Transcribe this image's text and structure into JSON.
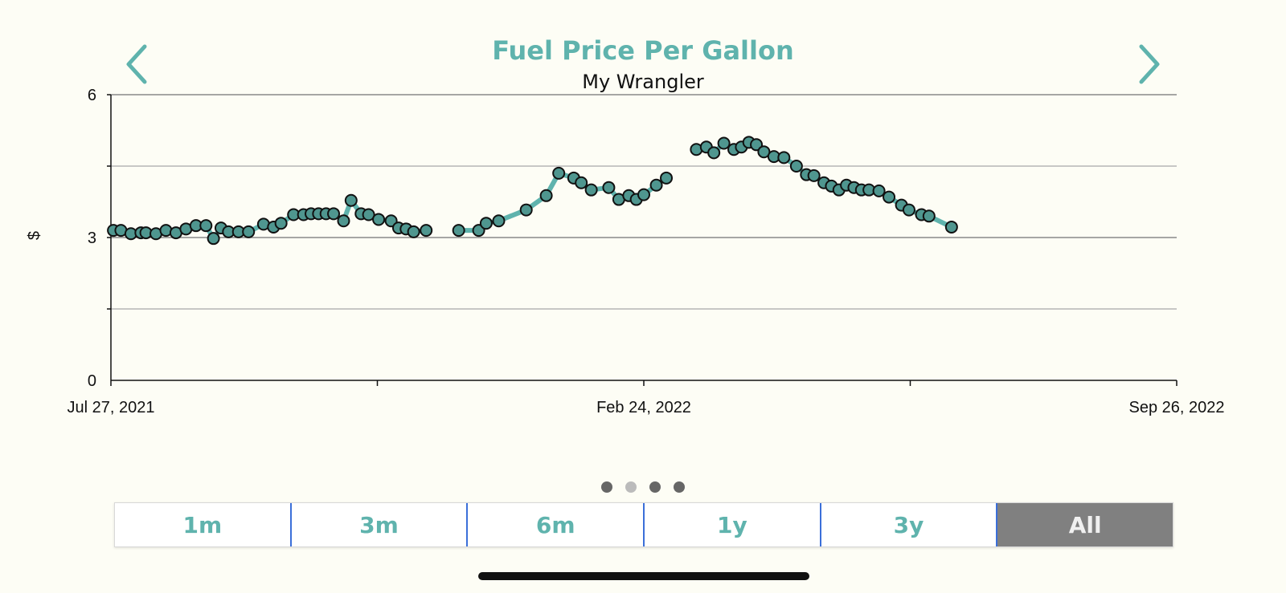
{
  "header": {
    "title": "Fuel Price Per Gallon",
    "subtitle": "My Wrangler"
  },
  "nav": {
    "prev_icon": "chevron-left-icon",
    "next_icon": "chevron-right-icon"
  },
  "colors": {
    "accent": "#5fb3ad",
    "point_fill": "#4f968f",
    "line": "#5fb3ad",
    "active_segment": "#808080"
  },
  "page_indicator": {
    "count": 4,
    "active_index": 1
  },
  "range_selector": {
    "options": [
      "1m",
      "3m",
      "6m",
      "1y",
      "3y",
      "All"
    ],
    "selected": "All"
  },
  "chart_data": {
    "type": "line",
    "ylabel": "$",
    "ylim": [
      0,
      6
    ],
    "yticks": [
      0,
      3,
      6
    ],
    "grid": true,
    "x_range": [
      "2021-07-27",
      "2022-09-26"
    ],
    "xtick_labels": [
      "Jul 27, 2021",
      "Feb 24, 2022",
      "Sep 26, 2022"
    ],
    "series": [
      {
        "points": [
          [
            "2021-07-28",
            3.15
          ],
          [
            "2021-07-31",
            3.15
          ],
          [
            "2021-08-04",
            3.08
          ],
          [
            "2021-08-08",
            3.1
          ],
          [
            "2021-08-10",
            3.1
          ],
          [
            "2021-08-14",
            3.08
          ],
          [
            "2021-08-18",
            3.15
          ],
          [
            "2021-08-22",
            3.1
          ],
          [
            "2021-08-26",
            3.18
          ],
          [
            "2021-08-30",
            3.25
          ],
          [
            "2021-09-03",
            3.25
          ],
          [
            "2021-09-06",
            2.98
          ],
          [
            "2021-09-09",
            3.2
          ],
          [
            "2021-09-12",
            3.12
          ],
          [
            "2021-09-16",
            3.12
          ],
          [
            "2021-09-20",
            3.12
          ],
          [
            "2021-09-26",
            3.28
          ],
          [
            "2021-09-30",
            3.22
          ],
          [
            "2021-10-03",
            3.3
          ],
          [
            "2021-10-08",
            3.48
          ],
          [
            "2021-10-12",
            3.48
          ],
          [
            "2021-10-15",
            3.5
          ],
          [
            "2021-10-18",
            3.5
          ],
          [
            "2021-10-21",
            3.5
          ],
          [
            "2021-10-24",
            3.5
          ],
          [
            "2021-10-28",
            3.35
          ],
          [
            "2021-10-31",
            3.78
          ],
          [
            "2021-11-04",
            3.5
          ],
          [
            "2021-11-07",
            3.48
          ],
          [
            "2021-11-11",
            3.38
          ],
          [
            "2021-11-16",
            3.35
          ],
          [
            "2021-11-19",
            3.2
          ],
          [
            "2021-11-22",
            3.18
          ],
          [
            "2021-11-25",
            3.12
          ],
          [
            "2021-11-30",
            3.15
          ]
        ]
      },
      {
        "points": [
          [
            "2021-12-13",
            3.15
          ],
          [
            "2021-12-21",
            3.15
          ],
          [
            "2021-12-24",
            3.3
          ],
          [
            "2021-12-29",
            3.35
          ],
          [
            "2022-01-09",
            3.58
          ],
          [
            "2022-01-17",
            3.88
          ],
          [
            "2022-01-22",
            4.35
          ],
          [
            "2022-01-28",
            4.25
          ],
          [
            "2022-01-31",
            4.15
          ],
          [
            "2022-02-04",
            4.0
          ],
          [
            "2022-02-11",
            4.05
          ],
          [
            "2022-02-15",
            3.8
          ],
          [
            "2022-02-19",
            3.88
          ],
          [
            "2022-02-22",
            3.8
          ],
          [
            "2022-02-25",
            3.9
          ],
          [
            "2022-03-02",
            4.1
          ],
          [
            "2022-03-06",
            4.25
          ]
        ]
      },
      {
        "points": [
          [
            "2022-03-18",
            4.85
          ],
          [
            "2022-03-22",
            4.9
          ],
          [
            "2022-03-25",
            4.78
          ],
          [
            "2022-03-29",
            4.98
          ],
          [
            "2022-04-02",
            4.85
          ],
          [
            "2022-04-05",
            4.9
          ],
          [
            "2022-04-08",
            5.0
          ],
          [
            "2022-04-11",
            4.95
          ],
          [
            "2022-04-14",
            4.8
          ],
          [
            "2022-04-18",
            4.7
          ],
          [
            "2022-04-22",
            4.68
          ],
          [
            "2022-04-27",
            4.5
          ],
          [
            "2022-05-01",
            4.32
          ],
          [
            "2022-05-04",
            4.3
          ],
          [
            "2022-05-08",
            4.15
          ],
          [
            "2022-05-11",
            4.08
          ],
          [
            "2022-05-14",
            4.0
          ],
          [
            "2022-05-17",
            4.1
          ],
          [
            "2022-05-20",
            4.05
          ],
          [
            "2022-05-23",
            4.0
          ],
          [
            "2022-05-26",
            4.0
          ],
          [
            "2022-05-30",
            3.98
          ],
          [
            "2022-06-03",
            3.85
          ],
          [
            "2022-06-08",
            3.68
          ],
          [
            "2022-06-11",
            3.58
          ],
          [
            "2022-06-16",
            3.48
          ],
          [
            "2022-06-19",
            3.45
          ],
          [
            "2022-06-28",
            3.22
          ]
        ]
      }
    ]
  }
}
